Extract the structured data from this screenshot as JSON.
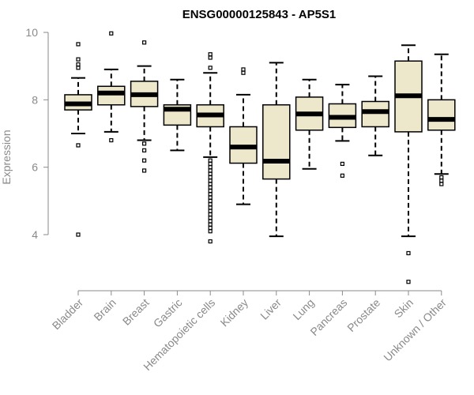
{
  "chart_data": {
    "type": "box",
    "title": "ENSG00000125843 - AP5S1",
    "xlabel": "",
    "ylabel": "Expression",
    "ylim": [
      2.2,
      10.3
    ],
    "yticks": [
      "4",
      "6",
      "8",
      "10"
    ],
    "ytick_values": [
      4,
      6,
      8,
      10
    ],
    "grid": false,
    "box_fill": "#ede7cc",
    "line_color": "#000000",
    "axis_color": "#8a8a8a",
    "categories": [
      "Bladder",
      "Brain",
      "Breast",
      "Gastric",
      "Hematopoietic cells",
      "Kidney",
      "Liver",
      "Lung",
      "Pancreas",
      "Prostate",
      "Skin",
      "Unknown / Other"
    ],
    "boxes": [
      {
        "q1": 7.7,
        "median": 7.88,
        "q3": 8.15,
        "whisker_low": 7.0,
        "whisker_high": 8.65,
        "outliers": [
          9.65,
          9.2,
          9.05,
          8.95,
          6.65,
          4.0
        ]
      },
      {
        "q1": 7.85,
        "median": 8.2,
        "q3": 8.4,
        "whisker_low": 7.05,
        "whisker_high": 8.9,
        "outliers": [
          9.97,
          6.8
        ]
      },
      {
        "q1": 7.8,
        "median": 8.15,
        "q3": 8.55,
        "whisker_low": 6.8,
        "whisker_high": 9.0,
        "outliers": [
          9.7,
          6.7,
          6.5,
          6.2,
          5.9
        ]
      },
      {
        "q1": 7.25,
        "median": 7.72,
        "q3": 7.85,
        "whisker_low": 6.5,
        "whisker_high": 8.6,
        "outliers": []
      },
      {
        "q1": 7.2,
        "median": 7.55,
        "q3": 7.85,
        "whisker_low": 6.3,
        "whisker_high": 8.8,
        "outliers": [
          9.35,
          9.25,
          8.95,
          6.2,
          6.1,
          6.0,
          5.9,
          5.8,
          5.7,
          5.6,
          5.5,
          5.4,
          5.3,
          5.2,
          5.1,
          5.0,
          4.9,
          4.8,
          4.7,
          4.6,
          4.5,
          4.4,
          4.3,
          4.2,
          4.1,
          3.8
        ]
      },
      {
        "q1": 6.12,
        "median": 6.6,
        "q3": 7.2,
        "whisker_low": 4.9,
        "whisker_high": 8.15,
        "outliers": [
          8.9,
          8.8
        ]
      },
      {
        "q1": 5.65,
        "median": 6.18,
        "q3": 7.85,
        "whisker_low": 3.95,
        "whisker_high": 9.1,
        "outliers": []
      },
      {
        "q1": 7.1,
        "median": 7.58,
        "q3": 8.08,
        "whisker_low": 5.95,
        "whisker_high": 8.6,
        "outliers": []
      },
      {
        "q1": 7.18,
        "median": 7.48,
        "q3": 7.88,
        "whisker_low": 6.78,
        "whisker_high": 8.45,
        "outliers": [
          6.1,
          5.75
        ]
      },
      {
        "q1": 7.2,
        "median": 7.65,
        "q3": 7.95,
        "whisker_low": 6.35,
        "whisker_high": 8.7,
        "outliers": []
      },
      {
        "q1": 7.05,
        "median": 8.12,
        "q3": 9.15,
        "whisker_low": 3.95,
        "whisker_high": 9.62,
        "outliers": [
          3.45,
          2.6
        ]
      },
      {
        "q1": 7.1,
        "median": 7.42,
        "q3": 8.0,
        "whisker_low": 5.8,
        "whisker_high": 9.35,
        "outliers": [
          5.7,
          5.6,
          5.5
        ]
      }
    ]
  }
}
